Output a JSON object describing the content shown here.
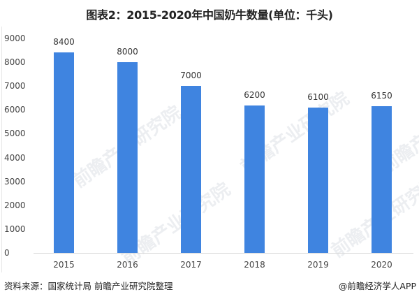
{
  "title": "图表2：2015-2020年中国奶牛数量(单位：千头)",
  "source": "资料来源：国家统计局 前瞻产业研究院整理",
  "credit": "@前瞻经济学人APP",
  "watermark": "前瞻产业研究院",
  "colors": {
    "bar": "#3f84e0",
    "axis": "#d9d9d9",
    "text": "#333333"
  },
  "y_ticks": [
    "0",
    "1000",
    "2000",
    "3000",
    "4000",
    "5000",
    "6000",
    "7000",
    "8000",
    "9000"
  ],
  "chart_data": {
    "type": "bar",
    "title": "图表2：2015-2020年中国奶牛数量(单位：千头)",
    "xlabel": "",
    "ylabel": "",
    "categories": [
      "2015",
      "2016",
      "2017",
      "2018",
      "2019",
      "2020"
    ],
    "values": [
      8400,
      8000,
      7000,
      6200,
      6100,
      6150
    ],
    "data_labels": [
      "8400",
      "8000",
      "7000",
      "6200",
      "6100",
      "6150"
    ],
    "ylim": [
      0,
      9000
    ],
    "y_tick_step": 1000,
    "grid": false,
    "legend": null,
    "unit": "千头"
  }
}
